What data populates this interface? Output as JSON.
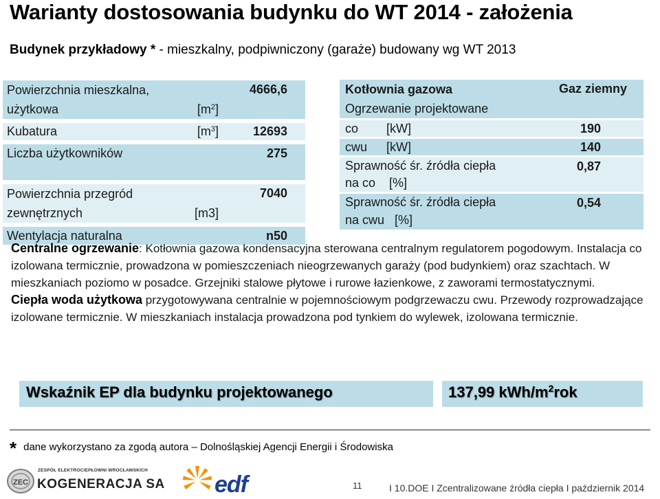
{
  "title": "Warianty dostosowania budynku do WT 2014 - założenia",
  "subtitle": {
    "bold": "Budynek przykładowy *",
    "rest": " - mieszkalny, podpiwniczony (garaże) budowany wg WT 2013"
  },
  "left_table": {
    "area_l1": "Powierzchnia mieszkalna,",
    "area_l2": "użytkowa",
    "area_unit": "[m",
    "area_unit_exp": "2",
    "area_unit_close": "]",
    "area_value": "4666,6",
    "volume_label": "Kubatura",
    "volume_unit": "[m",
    "volume_unit_exp": "3",
    "volume_unit_close": "]",
    "volume_value": "12693",
    "users_label": "Liczba użytkowników",
    "users_value": "275",
    "partitions_l1": "Powierzchnia przegród",
    "partitions_l2": "zewnętrznych",
    "partitions_unit": "[m3]",
    "partitions_value": "7040",
    "vent_label": "Wentylacja naturalna",
    "vent_value": "n50"
  },
  "right_table": {
    "boiler_label": "Kotłownia gazowa",
    "fuel_value": "Gaz ziemny",
    "heating_label": "Ogrzewanie projektowane",
    "co_label": "co",
    "co_unit": "[kW]",
    "co_value": "190",
    "cwu_label": "cwu",
    "cwu_unit": "[kW]",
    "cwu_value": "140",
    "eff_co_l1": "Sprawność śr. źródła ciepła",
    "eff_co_l2": "na co    [%]",
    "eff_co_value": "0,87",
    "eff_cwu_l1": "Sprawność śr. źródła ciepła",
    "eff_cwu_l2": "na cwu   [%]",
    "eff_cwu_value": "0,54"
  },
  "description": {
    "ch_heading": "Centralne ogrzewanie",
    "ch_text": ": Kotłownia gazowa kondensacyjna sterowana centralnym regulatorem pogodowym. Instalacja co izolowana termicznie, prowadzona w pomieszczeniach nieogrzewanych garaży (pod budynkiem) oraz szachtach. W mieszkaniach poziomo w posadce. Grzejniki stalowe płytowe i rurowe łazienkowe, z zaworami termostatycznymi.",
    "hw_heading": "Ciepła woda użytkowa",
    "hw_text": " przygotowywana centralnie w pojemnościowym podgrzewaczu cwu. Przewody rozprowadzające izolowane termicznie. W mieszkaniach instalacja prowadzona pod tynkiem do wylewek, izolowana termicznie."
  },
  "ep": {
    "label": "Wskaźnik EP dla budynku projektowanego",
    "value_main": "137,99 kWh/m",
    "value_exp": "2",
    "value_tail": "rok"
  },
  "footnote": {
    "star": "*",
    "text": "dane wykorzystano za zgodą autora – Dolnośląskiej Agencji Energii i Środowiska"
  },
  "footer": {
    "zec_top": "ZESPÓŁ ELEKTROCIEPŁOWNI WROCŁAWSKICH",
    "zec_name": "KOGENERACJA SA",
    "zec_badge": "ZEC",
    "edf_text": "edf",
    "page_number": "11",
    "text": "I  10.DOE I  Zcentralizowane  źródła ciepła I październik  2014"
  },
  "colors": {
    "cell_dark": "#bcdde7",
    "cell_light": "#e0eff3",
    "edf_blue": "#1f3f93",
    "edf_orange": "#f39200"
  }
}
